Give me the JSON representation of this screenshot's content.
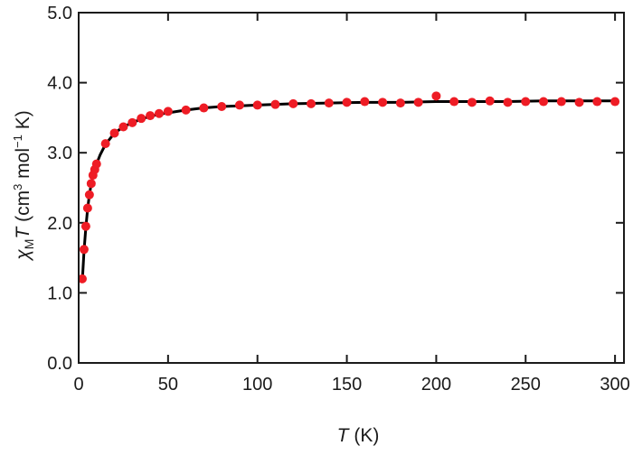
{
  "chart_data": {
    "type": "scatter",
    "xlabel": {
      "symbol": "T",
      "unit": "(K)"
    },
    "ylabel": {
      "chi": "χ",
      "sub": "M",
      "symbol": "T",
      "unit_open": "(cm",
      "sup1": "3",
      "mid": " mol",
      "sup2": "−1",
      "unit_close": " K)"
    },
    "xlim": [
      0,
      305
    ],
    "ylim": [
      0.0,
      5.0
    ],
    "xticks": [
      0,
      50,
      100,
      150,
      200,
      250,
      300
    ],
    "xtick_labels": [
      "0",
      "50",
      "100",
      "150",
      "200",
      "250",
      "300"
    ],
    "yticks": [
      0.0,
      1.0,
      2.0,
      3.0,
      4.0,
      5.0
    ],
    "ytick_labels": [
      "0.0",
      "1.0",
      "2.0",
      "3.0",
      "4.0",
      "5.0"
    ],
    "grid": false,
    "marker_color": "#ee1c25",
    "fit_color": "#000000",
    "series": [
      {
        "kind": "points",
        "x": [
          2,
          3,
          4,
          5,
          6,
          7,
          8,
          9,
          10,
          15,
          20,
          25,
          30,
          35,
          40,
          45,
          50,
          60,
          70,
          80,
          90,
          100,
          110,
          120,
          130,
          140,
          150,
          160,
          170,
          180,
          190,
          200,
          210,
          220,
          230,
          240,
          250,
          260,
          270,
          280,
          290,
          300
        ],
        "y": [
          1.2,
          1.62,
          1.95,
          2.21,
          2.4,
          2.56,
          2.68,
          2.76,
          2.84,
          3.13,
          3.28,
          3.37,
          3.43,
          3.49,
          3.53,
          3.56,
          3.59,
          3.61,
          3.64,
          3.66,
          3.68,
          3.68,
          3.69,
          3.7,
          3.7,
          3.71,
          3.72,
          3.73,
          3.72,
          3.71,
          3.72,
          3.81,
          3.73,
          3.72,
          3.74,
          3.72,
          3.73,
          3.73,
          3.73,
          3.72,
          3.73,
          3.73
        ]
      },
      {
        "kind": "fit",
        "x": [
          2,
          3,
          4,
          5,
          6,
          7,
          8,
          9,
          10,
          12,
          15,
          20,
          25,
          30,
          35,
          40,
          45,
          50,
          60,
          70,
          80,
          90,
          100,
          120,
          140,
          160,
          180,
          200,
          220,
          240,
          260,
          280,
          300
        ],
        "y": [
          1.15,
          1.6,
          1.93,
          2.2,
          2.4,
          2.55,
          2.67,
          2.76,
          2.84,
          2.97,
          3.12,
          3.28,
          3.37,
          3.43,
          3.48,
          3.52,
          3.55,
          3.57,
          3.61,
          3.64,
          3.66,
          3.67,
          3.68,
          3.7,
          3.71,
          3.72,
          3.72,
          3.73,
          3.73,
          3.73,
          3.74,
          3.74,
          3.74
        ]
      }
    ]
  }
}
